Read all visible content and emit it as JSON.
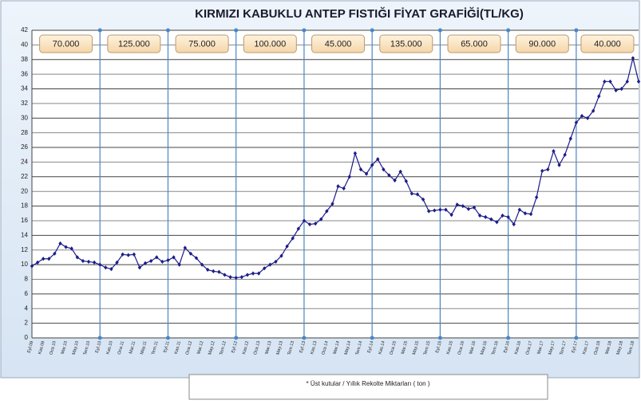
{
  "chart_data": {
    "type": "line",
    "title": "KIRMIZI KABUKLU ANTEP FISTIĞI FİYAT GRAFİĞİ(TL/KG)",
    "harvest_boxes": [
      "70.000",
      "125.000",
      "75.000",
      "100.000",
      "45.000",
      "135.000",
      "65.000",
      "90.000",
      "40.000"
    ],
    "footnote": "* Üst kutular  /  Yıllık Rekolte Miktarları ( ton )",
    "color": "#1c1c8a",
    "grid": true,
    "ylim": [
      0,
      42
    ],
    "yticks": [
      0,
      2,
      4,
      6,
      8,
      10,
      12,
      14,
      16,
      18,
      20,
      22,
      24,
      26,
      28,
      30,
      32,
      34,
      36,
      38,
      40,
      42
    ],
    "categories": [
      "Eyl.09",
      null,
      "Kas.09",
      null,
      "Oca.10",
      null,
      "Mar.10",
      null,
      "May.10",
      null,
      "Tem.10",
      null,
      "Eyl.10",
      null,
      "Kas.10",
      null,
      "Oca.11",
      null,
      "Mar.11",
      null,
      "May.11",
      null,
      "Tem.11",
      null,
      "Eyl.11",
      null,
      "Kas.11",
      null,
      "Oca.12",
      null,
      "Mar.12",
      null,
      "May.12",
      null,
      "Tem.12",
      null,
      "Eyl.12",
      null,
      "Kas.12",
      null,
      "Oca.13",
      null,
      "Mar.13",
      null,
      "May.13",
      null,
      "Tem.13",
      null,
      "Eyl.13",
      null,
      "Kas.13",
      null,
      "Oca.14",
      null,
      "Mar.14",
      null,
      "May.14",
      null,
      "Tem.14",
      null,
      "Eyl.14",
      null,
      "Kas.14",
      null,
      "Oca.15",
      null,
      "Mar.15",
      null,
      "May.15",
      null,
      "Tem.15",
      null,
      "Eyl.15",
      null,
      "Kas.15",
      null,
      "Oca.16",
      null,
      "Mar.16",
      null,
      "May.16",
      null,
      "Tem.16",
      null,
      "Eyl.16",
      null,
      "Kas.16",
      null,
      "Oca.17",
      null,
      "Mar.17",
      null,
      "May.17",
      null,
      "Tem.17",
      null,
      "Eyl.17",
      null,
      "Kas.17",
      null,
      "Oca.18",
      null,
      "Mar.18",
      null,
      "May.18",
      null,
      "Tem.18",
      null
    ],
    "values": [
      9.8,
      10.3,
      10.8,
      10.8,
      11.5,
      12.9,
      12.4,
      12.2,
      11.0,
      10.5,
      10.4,
      10.3,
      10.0,
      9.6,
      9.4,
      10.3,
      11.4,
      11.3,
      11.4,
      9.6,
      10.2,
      10.5,
      11.0,
      10.4,
      10.6,
      11.0,
      10.0,
      12.3,
      11.5,
      10.9,
      10.0,
      9.3,
      9.1,
      9.0,
      8.6,
      8.3,
      8.2,
      8.3,
      8.6,
      8.8,
      8.8,
      9.5,
      10.0,
      10.4,
      11.2,
      12.5,
      13.6,
      14.9,
      16.0,
      15.5,
      15.6,
      16.2,
      17.3,
      18.3,
      20.7,
      20.4,
      22.0,
      25.2,
      23.0,
      22.4,
      23.6,
      24.4,
      23.0,
      22.2,
      21.5,
      22.7,
      21.4,
      19.7,
      19.6,
      18.9,
      17.3,
      17.4,
      17.5,
      17.5,
      16.8,
      18.2,
      18.0,
      17.6,
      17.8,
      16.7,
      16.5,
      16.2,
      15.8,
      16.7,
      16.5,
      15.5,
      17.5,
      17.0,
      16.9,
      19.2,
      22.8,
      23.0,
      25.5,
      23.6,
      25.0,
      27.2,
      29.4,
      30.3,
      30.0,
      31.0,
      33.0,
      35.0,
      35.0,
      33.8,
      34.0,
      35.0,
      38.2,
      35.0
    ]
  }
}
